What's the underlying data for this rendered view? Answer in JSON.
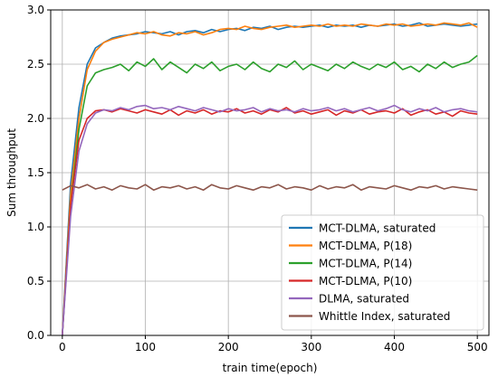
{
  "chart_data": {
    "type": "line",
    "title": "",
    "xlabel": "train time(epoch)",
    "ylabel": "Sum throughput",
    "xlim": [
      -14,
      514
    ],
    "ylim": [
      0.0,
      3.0
    ],
    "x_ticks": [
      0,
      100,
      200,
      300,
      400,
      500
    ],
    "y_ticks": [
      0.0,
      0.5,
      1.0,
      1.5,
      2.0,
      2.5,
      3.0
    ],
    "x_tick_labels": [
      "0",
      "100",
      "200",
      "300",
      "400",
      "500"
    ],
    "y_tick_labels": [
      "0.0",
      "0.5",
      "1.0",
      "1.5",
      "2.0",
      "2.5",
      "3.0"
    ],
    "grid": true,
    "legend_position": "lower-right",
    "series": [
      {
        "name": "MCT-DLMA, saturated",
        "color": "#1f77b4",
        "x": [
          0,
          10,
          20,
          30,
          40,
          50,
          60,
          70,
          80,
          90,
          100,
          110,
          120,
          130,
          140,
          150,
          160,
          170,
          180,
          190,
          200,
          210,
          220,
          230,
          240,
          250,
          260,
          270,
          280,
          290,
          300,
          310,
          320,
          330,
          340,
          350,
          360,
          370,
          380,
          390,
          400,
          410,
          420,
          430,
          440,
          450,
          460,
          470,
          480,
          490,
          500
        ],
        "y": [
          0.0,
          1.4,
          2.1,
          2.5,
          2.65,
          2.7,
          2.74,
          2.76,
          2.77,
          2.78,
          2.8,
          2.79,
          2.78,
          2.8,
          2.77,
          2.8,
          2.81,
          2.79,
          2.82,
          2.8,
          2.82,
          2.83,
          2.81,
          2.84,
          2.83,
          2.85,
          2.82,
          2.84,
          2.85,
          2.84,
          2.85,
          2.86,
          2.84,
          2.86,
          2.85,
          2.86,
          2.84,
          2.86,
          2.85,
          2.86,
          2.87,
          2.85,
          2.86,
          2.88,
          2.85,
          2.86,
          2.87,
          2.86,
          2.85,
          2.86,
          2.87
        ]
      },
      {
        "name": "MCT-DLMA, P(18)",
        "color": "#ff7f0e",
        "x": [
          0,
          10,
          20,
          30,
          40,
          50,
          60,
          70,
          80,
          90,
          100,
          110,
          120,
          130,
          140,
          150,
          160,
          170,
          180,
          190,
          200,
          210,
          220,
          230,
          240,
          250,
          260,
          270,
          280,
          290,
          300,
          310,
          320,
          330,
          340,
          350,
          360,
          370,
          380,
          390,
          400,
          410,
          420,
          430,
          440,
          450,
          460,
          470,
          480,
          490,
          500
        ],
        "y": [
          0.0,
          1.3,
          2.0,
          2.45,
          2.62,
          2.7,
          2.73,
          2.75,
          2.77,
          2.79,
          2.78,
          2.8,
          2.77,
          2.76,
          2.79,
          2.78,
          2.8,
          2.77,
          2.79,
          2.82,
          2.83,
          2.82,
          2.85,
          2.83,
          2.82,
          2.84,
          2.85,
          2.86,
          2.84,
          2.85,
          2.86,
          2.85,
          2.87,
          2.85,
          2.86,
          2.85,
          2.87,
          2.86,
          2.85,
          2.87,
          2.86,
          2.87,
          2.85,
          2.86,
          2.87,
          2.86,
          2.88,
          2.87,
          2.86,
          2.88,
          2.84
        ]
      },
      {
        "name": "MCT-DLMA, P(14)",
        "color": "#2ca02c",
        "x": [
          0,
          10,
          20,
          30,
          40,
          50,
          60,
          70,
          80,
          90,
          100,
          110,
          120,
          130,
          140,
          150,
          160,
          170,
          180,
          190,
          200,
          210,
          220,
          230,
          240,
          250,
          260,
          270,
          280,
          290,
          300,
          310,
          320,
          330,
          340,
          350,
          360,
          370,
          380,
          390,
          400,
          410,
          420,
          430,
          440,
          450,
          460,
          470,
          480,
          490,
          500
        ],
        "y": [
          0.0,
          1.2,
          1.9,
          2.3,
          2.42,
          2.45,
          2.47,
          2.5,
          2.44,
          2.52,
          2.48,
          2.55,
          2.45,
          2.52,
          2.47,
          2.42,
          2.5,
          2.46,
          2.52,
          2.44,
          2.48,
          2.5,
          2.45,
          2.52,
          2.46,
          2.43,
          2.5,
          2.47,
          2.53,
          2.45,
          2.5,
          2.47,
          2.44,
          2.5,
          2.46,
          2.52,
          2.48,
          2.45,
          2.5,
          2.47,
          2.52,
          2.45,
          2.48,
          2.43,
          2.5,
          2.46,
          2.52,
          2.47,
          2.5,
          2.52,
          2.58
        ]
      },
      {
        "name": "MCT-DLMA, P(10)",
        "color": "#d62728",
        "x": [
          0,
          10,
          20,
          30,
          40,
          50,
          60,
          70,
          80,
          90,
          100,
          110,
          120,
          130,
          140,
          150,
          160,
          170,
          180,
          190,
          200,
          210,
          220,
          230,
          240,
          250,
          260,
          270,
          280,
          290,
          300,
          310,
          320,
          330,
          340,
          350,
          360,
          370,
          380,
          390,
          400,
          410,
          420,
          430,
          440,
          450,
          460,
          470,
          480,
          490,
          500
        ],
        "y": [
          0.0,
          1.2,
          1.8,
          2.0,
          2.07,
          2.08,
          2.06,
          2.09,
          2.07,
          2.05,
          2.08,
          2.06,
          2.04,
          2.08,
          2.03,
          2.07,
          2.05,
          2.08,
          2.04,
          2.07,
          2.06,
          2.09,
          2.05,
          2.07,
          2.04,
          2.08,
          2.06,
          2.1,
          2.05,
          2.07,
          2.04,
          2.06,
          2.08,
          2.03,
          2.07,
          2.05,
          2.08,
          2.04,
          2.06,
          2.07,
          2.05,
          2.09,
          2.03,
          2.06,
          2.08,
          2.04,
          2.06,
          2.02,
          2.07,
          2.05,
          2.04
        ]
      },
      {
        "name": "DLMA, saturated",
        "color": "#9467bd",
        "x": [
          0,
          10,
          20,
          30,
          40,
          50,
          60,
          70,
          80,
          90,
          100,
          110,
          120,
          130,
          140,
          150,
          160,
          170,
          180,
          190,
          200,
          210,
          220,
          230,
          240,
          250,
          260,
          270,
          280,
          290,
          300,
          310,
          320,
          330,
          340,
          350,
          360,
          370,
          380,
          390,
          400,
          410,
          420,
          430,
          440,
          450,
          460,
          470,
          480,
          490,
          500
        ],
        "y": [
          0.0,
          1.1,
          1.7,
          1.95,
          2.05,
          2.08,
          2.07,
          2.1,
          2.08,
          2.11,
          2.12,
          2.09,
          2.1,
          2.08,
          2.11,
          2.09,
          2.07,
          2.1,
          2.08,
          2.06,
          2.09,
          2.07,
          2.08,
          2.1,
          2.06,
          2.09,
          2.07,
          2.08,
          2.06,
          2.09,
          2.07,
          2.08,
          2.1,
          2.07,
          2.09,
          2.06,
          2.08,
          2.1,
          2.07,
          2.09,
          2.12,
          2.08,
          2.06,
          2.09,
          2.07,
          2.1,
          2.06,
          2.08,
          2.09,
          2.07,
          2.06
        ]
      },
      {
        "name": "Whittle Index, saturated",
        "color": "#8c564b",
        "x": [
          0,
          10,
          20,
          30,
          40,
          50,
          60,
          70,
          80,
          90,
          100,
          110,
          120,
          130,
          140,
          150,
          160,
          170,
          180,
          190,
          200,
          210,
          220,
          230,
          240,
          250,
          260,
          270,
          280,
          290,
          300,
          310,
          320,
          330,
          340,
          350,
          360,
          370,
          380,
          390,
          400,
          410,
          420,
          430,
          440,
          450,
          460,
          470,
          480,
          490,
          500
        ],
        "y": [
          1.34,
          1.38,
          1.36,
          1.39,
          1.35,
          1.37,
          1.34,
          1.38,
          1.36,
          1.35,
          1.39,
          1.34,
          1.37,
          1.36,
          1.38,
          1.35,
          1.37,
          1.34,
          1.39,
          1.36,
          1.35,
          1.38,
          1.36,
          1.34,
          1.37,
          1.36,
          1.39,
          1.35,
          1.37,
          1.36,
          1.34,
          1.38,
          1.35,
          1.37,
          1.36,
          1.39,
          1.34,
          1.37,
          1.36,
          1.35,
          1.38,
          1.36,
          1.34,
          1.37,
          1.36,
          1.38,
          1.35,
          1.37,
          1.36,
          1.35,
          1.34
        ]
      }
    ]
  }
}
